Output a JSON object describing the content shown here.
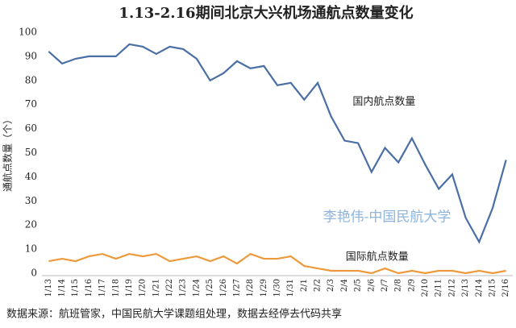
{
  "chart_data": {
    "type": "line",
    "title": "1.13-2.16期间北京大兴机场通航点数量变化",
    "y_label": "通航点数量（个）",
    "annotation": "李艳伟-中国民航大学",
    "source": "数据来源：航班管家，中国民航大学课题组处理，数据去经停去代码共享",
    "categories": [
      "1/13",
      "1/14",
      "1/15",
      "1/16",
      "1/17",
      "1/18",
      "1/19",
      "1/20",
      "1/21",
      "1/22",
      "1/23",
      "1/24",
      "1/25",
      "1/26",
      "1/27",
      "1/28",
      "1/29",
      "1/30",
      "1/31",
      "2/1",
      "2/2",
      "2/3",
      "2/4",
      "2/5",
      "2/6",
      "2/7",
      "2/8",
      "2/9",
      "2/10",
      "2/11",
      "2/12",
      "2/13",
      "2/14",
      "2/15",
      "2/16"
    ],
    "series": [
      {
        "name": "国内航点数量",
        "color": "#4a6fa5",
        "values": [
          92,
          87,
          89,
          90,
          90,
          90,
          95,
          94,
          91,
          94,
          93,
          89,
          80,
          83,
          88,
          85,
          86,
          78,
          79,
          72,
          79,
          65,
          55,
          54,
          42,
          52,
          46,
          56,
          45,
          35,
          41,
          23,
          13,
          27,
          47
        ]
      },
      {
        "name": "国际航点数量",
        "color": "#ed9a3c",
        "values": [
          5,
          6,
          5,
          7,
          8,
          6,
          8,
          7,
          8,
          5,
          6,
          7,
          5,
          7,
          4,
          8,
          6,
          6,
          7,
          3,
          2,
          1,
          1,
          1,
          0,
          2,
          0,
          1,
          0,
          1,
          1,
          0,
          1,
          0,
          1
        ]
      }
    ],
    "ylim": [
      -1,
      100
    ],
    "yticks": [
      0,
      10,
      20,
      30,
      40,
      50,
      60,
      70,
      80,
      90,
      100
    ],
    "grid": false
  }
}
